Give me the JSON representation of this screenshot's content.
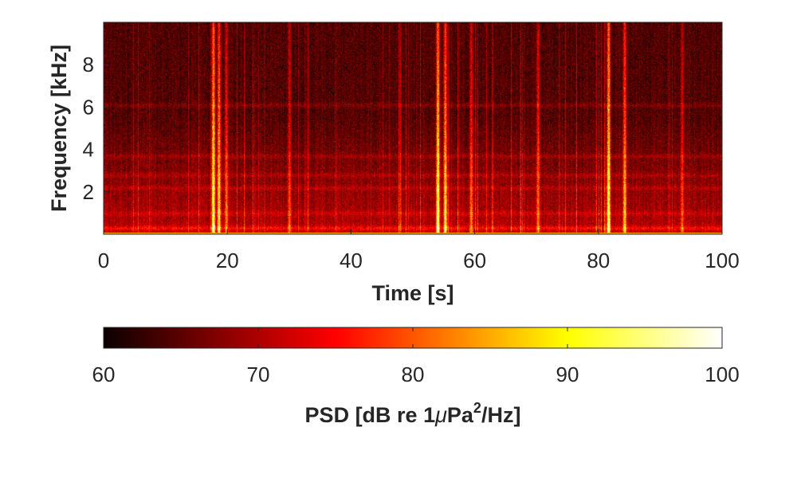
{
  "chart_data": [
    {
      "type": "heatmap",
      "title": "",
      "xlabel": "Time [s]",
      "ylabel": "Frequency [kHz]",
      "xlim": [
        0,
        100
      ],
      "ylim": [
        0,
        10
      ],
      "xticks": [
        0,
        20,
        40,
        60,
        80,
        100
      ],
      "xtick_labels": [
        "0",
        "20",
        "40",
        "60",
        "80",
        "100"
      ],
      "yticks": [
        2,
        4,
        6,
        8
      ],
      "ytick_labels": [
        "2",
        "4",
        "6",
        "8"
      ],
      "colormap": "hot",
      "color_range": [
        60,
        100
      ],
      "background_level_db": 64,
      "broadband_events": [
        {
          "time_s": 17.7,
          "peak_db": 95
        },
        {
          "time_s": 18.6,
          "peak_db": 89
        },
        {
          "time_s": 19.8,
          "peak_db": 80
        },
        {
          "time_s": 54.0,
          "peak_db": 96
        },
        {
          "time_s": 55.2,
          "peak_db": 90
        },
        {
          "time_s": 59.4,
          "peak_db": 80
        },
        {
          "time_s": 70.2,
          "peak_db": 80
        },
        {
          "time_s": 81.6,
          "peak_db": 95
        },
        {
          "time_s": 84.2,
          "peak_db": 86
        },
        {
          "time_s": 30.0,
          "peak_db": 77
        },
        {
          "time_s": 93.5,
          "peak_db": 77
        }
      ],
      "band_frequencies_khz": [
        0.3,
        1.0,
        2.2,
        2.8,
        3.7,
        6.1
      ]
    },
    {
      "type": "colorbar",
      "label_parts": {
        "main": "PSD [dB re 1",
        "mu": "μ",
        "unit": "Pa",
        "sup": "2",
        "tail": "/Hz]"
      },
      "range": [
        60,
        100
      ],
      "ticks": [
        60,
        70,
        80,
        90,
        100
      ],
      "tick_labels": [
        "60",
        "70",
        "80",
        "90",
        "100"
      ],
      "colormap": "hot"
    }
  ],
  "colors": {
    "axis": "#262626",
    "tick_text": "#262626",
    "background": "#ffffff"
  }
}
